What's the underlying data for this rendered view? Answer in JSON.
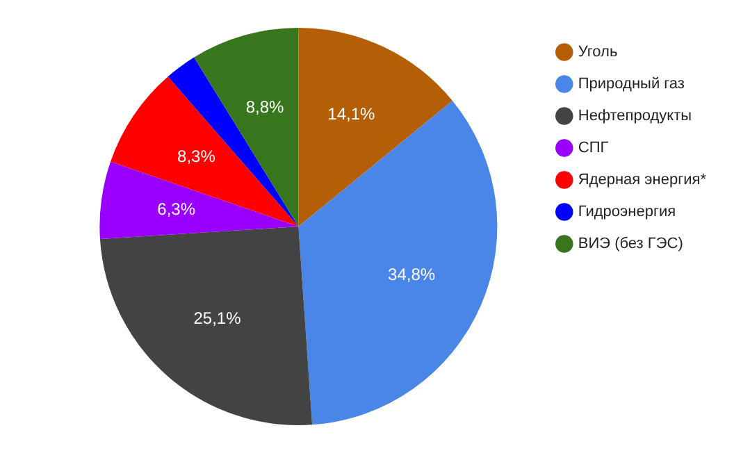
{
  "chart_data": {
    "type": "pie",
    "categories": [
      "Уголь",
      "Природный газ",
      "Нефтепродукты",
      "СПГ",
      "Ядерная энергия*",
      "Гидроэнергия",
      "ВИЭ (без ГЭС)"
    ],
    "values": [
      14.1,
      34.8,
      25.1,
      6.3,
      8.3,
      2.6,
      8.8
    ],
    "colors": [
      "#b45f06",
      "#4a86e8",
      "#434343",
      "#9900ff",
      "#ff0000",
      "#0000ff",
      "#38761d"
    ],
    "value_labels": [
      "14,1%",
      "34,8%",
      "25,1%",
      "6,3%",
      "8,3%",
      null,
      "8,8%"
    ],
    "legend": "right"
  }
}
